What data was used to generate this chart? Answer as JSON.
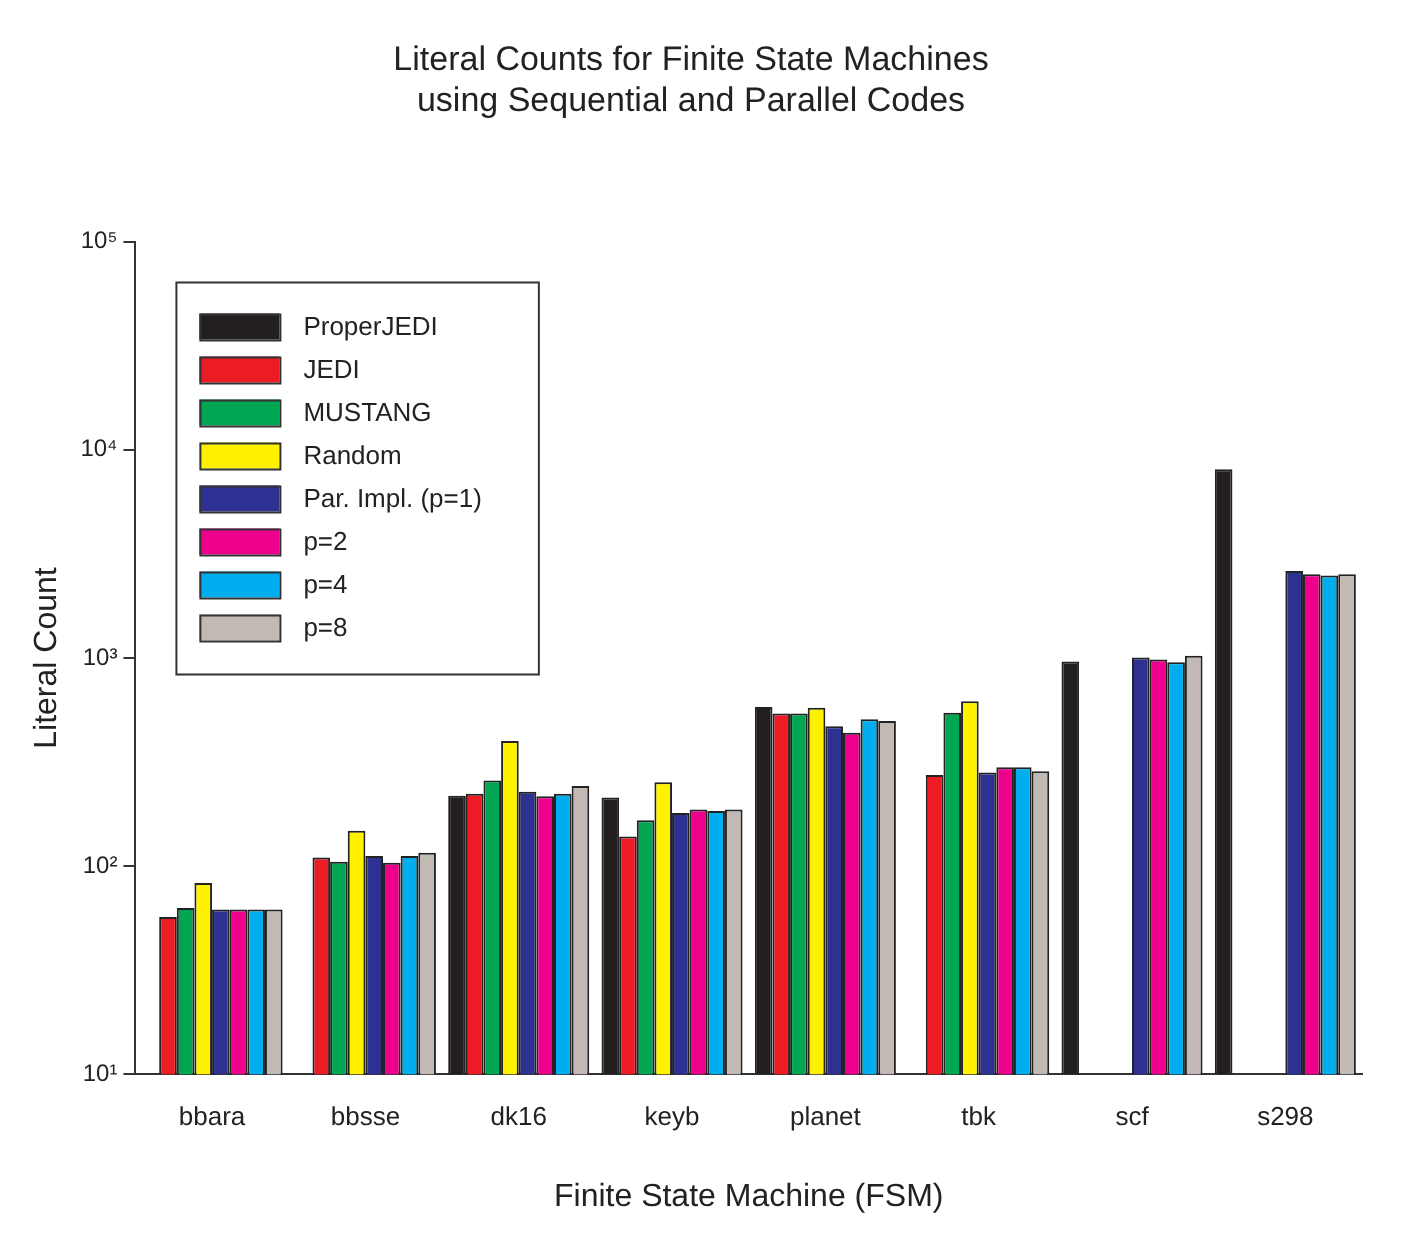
{
  "chart_data": {
    "type": "bar",
    "title": "Literal Counts for Finite State Machines\nusing Sequential and Parallel Codes",
    "xlabel": "Finite State Machine (FSM)",
    "ylabel": "Literal Count",
    "categories": [
      "bbara",
      "bbsse",
      "dk16",
      "keyb",
      "planet",
      "tbk",
      "scf",
      "s298"
    ],
    "series": [
      {
        "name": "ProperJEDI",
        "color": "#231f20",
        "values": [
          null,
          null,
          218,
          214,
          581,
          null,
          962,
          8070
        ]
      },
      {
        "name": "JEDI",
        "color": "#ed1c24",
        "values": [
          57,
          110,
          223,
          139,
          542,
          274,
          null,
          null
        ]
      },
      {
        "name": "MUSTANG",
        "color": "#00a651",
        "values": [
          63,
          105,
          258,
          166,
          542,
          546,
          null,
          null
        ]
      },
      {
        "name": "Random",
        "color": "#fff200",
        "values": [
          83,
          148,
          399,
          253,
          577,
          620,
          null,
          null
        ]
      },
      {
        "name": "Par. Impl. (p=1)",
        "color": "#2e3192",
        "values": [
          62,
          112,
          228,
          180,
          470,
          282,
          1005,
          2620
        ]
      },
      {
        "name": "p=2",
        "color": "#ec008c",
        "values": [
          62,
          104,
          217,
          187,
          438,
          299,
          984,
          2522
        ]
      },
      {
        "name": "p=4",
        "color": "#00aeef",
        "values": [
          62,
          112,
          223,
          184,
          508,
          299,
          955,
          2490
        ]
      },
      {
        "name": "p=8",
        "color": "#c2b9b5",
        "values": [
          62,
          116,
          243,
          187,
          498,
          286,
          1026,
          2522
        ]
      }
    ],
    "log": "y",
    "ylim": [
      10,
      100000
    ],
    "yticks": [
      {
        "value": 10,
        "label": "10¹"
      },
      {
        "value": 100,
        "label": "10²"
      },
      {
        "value": 1000,
        "label": "10³"
      },
      {
        "value": 10000,
        "label": "10⁴"
      },
      {
        "value": 100000,
        "label": "10⁵"
      }
    ],
    "grid": false,
    "legend": "top left"
  }
}
